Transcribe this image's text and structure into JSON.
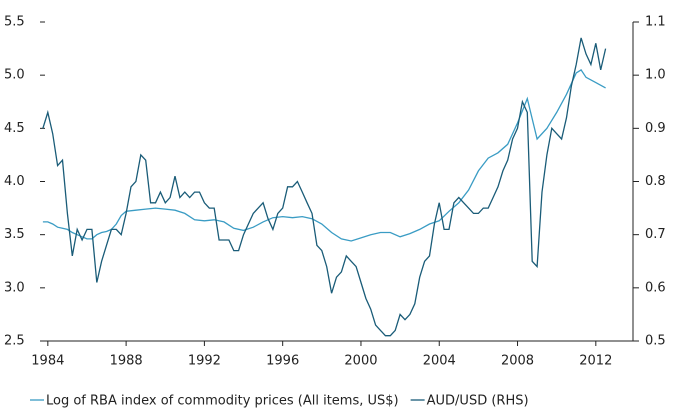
{
  "chart_data": {
    "type": "line",
    "xlim": [
      1983.6,
      2013.9
    ],
    "xticks": [
      1984,
      1988,
      1992,
      1996,
      2000,
      2004,
      2008,
      2012
    ],
    "ylim": [
      2.5,
      5.5
    ],
    "yticks": [
      2.5,
      {
        "value": 3,
        "label": "3.0"
      },
      3.5,
      {
        "value": 4,
        "label": "4.0"
      },
      4.5,
      {
        "value": 5,
        "label": "5.0"
      },
      5.5
    ],
    "y2lim": [
      0.5,
      1.1
    ],
    "y2ticks": [
      0.5,
      0.6,
      0.7,
      0.8,
      0.9,
      {
        "value": 1,
        "label": "1.0"
      },
      1.1
    ],
    "series": [
      {
        "name": "Log of RBA index of commodity prices (All items, US$)",
        "color": "#3a9cc4",
        "x": [
          1983.75,
          1984,
          1984.25,
          1984.5,
          1984.75,
          1985,
          1985.25,
          1985.5,
          1985.75,
          1986,
          1986.25,
          1986.5,
          1986.75,
          1987,
          1987.25,
          1987.5,
          1987.75,
          1988,
          1988.5,
          1989,
          1989.5,
          1990,
          1990.5,
          1991,
          1991.5,
          1992,
          1992.5,
          1993,
          1993.5,
          1994,
          1994.5,
          1995,
          1995.5,
          1996,
          1996.5,
          1997,
          1997.5,
          1998,
          1998.5,
          1999,
          1999.5,
          2000,
          2000.5,
          2001,
          2001.5,
          2002,
          2002.5,
          2003,
          2003.5,
          2004,
          2004.5,
          2005,
          2005.5,
          2006,
          2006.5,
          2007,
          2007.5,
          2008,
          2008.5,
          2009,
          2009.5,
          2010,
          2010.5,
          2011,
          2011.25,
          2011.5,
          2012,
          2012.5
        ],
        "values": [
          3.62,
          3.62,
          3.6,
          3.57,
          3.56,
          3.55,
          3.52,
          3.5,
          3.48,
          3.46,
          3.46,
          3.5,
          3.52,
          3.53,
          3.55,
          3.6,
          3.68,
          3.72,
          3.73,
          3.74,
          3.75,
          3.74,
          3.73,
          3.7,
          3.64,
          3.63,
          3.64,
          3.62,
          3.56,
          3.54,
          3.57,
          3.62,
          3.66,
          3.67,
          3.66,
          3.67,
          3.65,
          3.6,
          3.52,
          3.46,
          3.44,
          3.47,
          3.5,
          3.52,
          3.52,
          3.48,
          3.51,
          3.55,
          3.6,
          3.63,
          3.72,
          3.8,
          3.92,
          4.1,
          4.22,
          4.27,
          4.35,
          4.55,
          4.78,
          4.4,
          4.5,
          4.65,
          4.82,
          5.02,
          5.05,
          4.98,
          4.93,
          4.88
        ]
      },
      {
        "name": "AUD/USD (RHS)",
        "color": "#1a5c78",
        "axis": "y2",
        "x": [
          1983.75,
          1984,
          1984.25,
          1984.5,
          1984.75,
          1985,
          1985.25,
          1985.5,
          1985.75,
          1986,
          1986.25,
          1986.5,
          1986.75,
          1987,
          1987.25,
          1987.5,
          1987.75,
          1988,
          1988.25,
          1988.5,
          1988.75,
          1989,
          1989.25,
          1989.5,
          1989.75,
          1990,
          1990.25,
          1990.5,
          1990.75,
          1991,
          1991.25,
          1991.5,
          1991.75,
          1992,
          1992.25,
          1992.5,
          1992.75,
          1993,
          1993.25,
          1993.5,
          1993.75,
          1994,
          1994.25,
          1994.5,
          1994.75,
          1995,
          1995.25,
          1995.5,
          1995.75,
          1996,
          1996.25,
          1996.5,
          1996.75,
          1997,
          1997.25,
          1997.5,
          1997.75,
          1998,
          1998.25,
          1998.5,
          1998.75,
          1999,
          1999.25,
          1999.5,
          1999.75,
          2000,
          2000.25,
          2000.5,
          2000.75,
          2001,
          2001.25,
          2001.5,
          2001.75,
          2002,
          2002.25,
          2002.5,
          2002.75,
          2003,
          2003.25,
          2003.5,
          2003.75,
          2004,
          2004.25,
          2004.5,
          2004.75,
          2005,
          2005.25,
          2005.5,
          2005.75,
          2006,
          2006.25,
          2006.5,
          2006.75,
          2007,
          2007.25,
          2007.5,
          2007.75,
          2008,
          2008.25,
          2008.5,
          2008.75,
          2009,
          2009.25,
          2009.5,
          2009.75,
          2010,
          2010.25,
          2010.5,
          2010.75,
          2011,
          2011.25,
          2011.5,
          2011.75,
          2012,
          2012.25,
          2012.5
        ],
        "values": [
          0.9,
          0.93,
          0.89,
          0.83,
          0.84,
          0.74,
          0.66,
          0.71,
          0.69,
          0.71,
          0.71,
          0.61,
          0.65,
          0.68,
          0.71,
          0.71,
          0.7,
          0.74,
          0.79,
          0.8,
          0.85,
          0.84,
          0.76,
          0.76,
          0.78,
          0.76,
          0.77,
          0.81,
          0.77,
          0.78,
          0.77,
          0.78,
          0.78,
          0.76,
          0.75,
          0.75,
          0.69,
          0.69,
          0.69,
          0.67,
          0.67,
          0.7,
          0.72,
          0.74,
          0.75,
          0.76,
          0.73,
          0.71,
          0.74,
          0.75,
          0.79,
          0.79,
          0.8,
          0.78,
          0.76,
          0.74,
          0.68,
          0.67,
          0.64,
          0.59,
          0.62,
          0.63,
          0.66,
          0.65,
          0.64,
          0.61,
          0.58,
          0.56,
          0.53,
          0.52,
          0.51,
          0.51,
          0.52,
          0.55,
          0.54,
          0.55,
          0.57,
          0.62,
          0.65,
          0.66,
          0.72,
          0.76,
          0.71,
          0.71,
          0.76,
          0.77,
          0.76,
          0.75,
          0.74,
          0.74,
          0.75,
          0.75,
          0.77,
          0.79,
          0.82,
          0.84,
          0.88,
          0.9,
          0.95,
          0.93,
          0.65,
          0.64,
          0.78,
          0.85,
          0.9,
          0.89,
          0.88,
          0.92,
          0.98,
          1.02,
          1.07,
          1.04,
          1.02,
          1.06,
          1.01,
          1.05
        ]
      }
    ]
  }
}
